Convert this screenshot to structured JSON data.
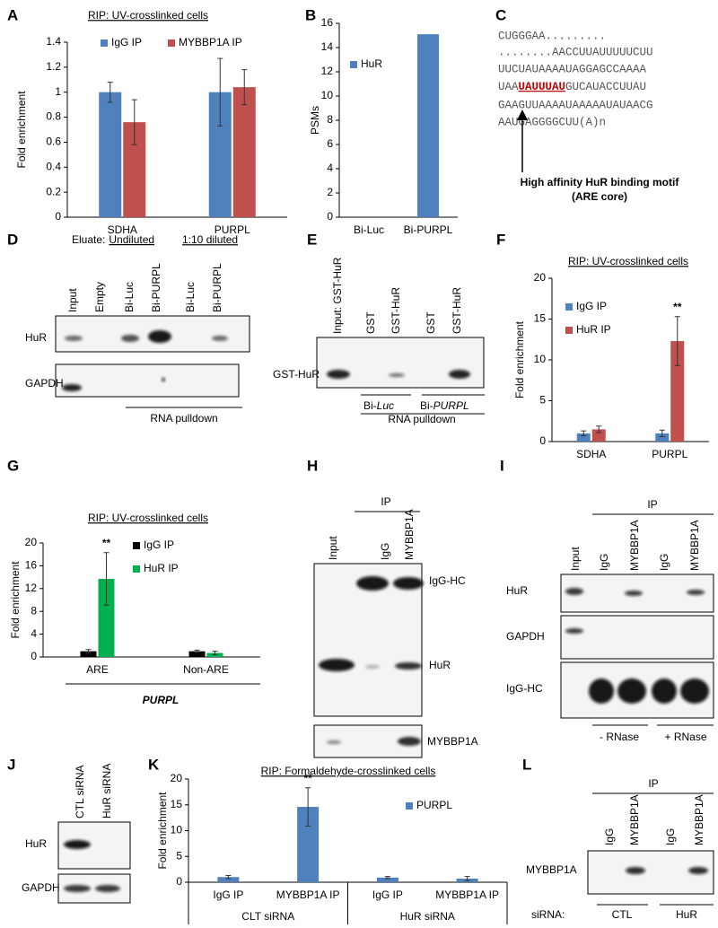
{
  "chart_data": [
    {
      "type": "bar",
      "label": "A",
      "title": "RIP: UV-crosslinked cells",
      "y_label": "Fold enrichment",
      "categories": [
        "SDHA",
        "PURPL"
      ],
      "series": [
        {
          "name": "IgG IP",
          "color": "#4f81bd",
          "values": [
            1,
            1
          ],
          "errors": [
            0.08,
            0.27
          ]
        },
        {
          "name": "MYBBP1A IP",
          "color": "#c0504d",
          "values": [
            0.76,
            1.04
          ],
          "errors": [
            0.18,
            0.14
          ]
        }
      ],
      "ylim": [
        0,
        1.4
      ],
      "yticks": [
        0,
        0.2,
        0.4,
        0.6,
        0.8,
        1,
        1.2,
        1.4
      ]
    },
    {
      "type": "bar",
      "label": "B",
      "y_label": "PSMs",
      "categories": [
        "Bi-Luc",
        "Bi-PURPL"
      ],
      "series": [
        {
          "name": "HuR",
          "color": "#4f81bd",
          "values": [
            0,
            15.1
          ]
        }
      ],
      "ylim": [
        0,
        16
      ],
      "yticks": [
        0,
        2,
        4,
        6,
        8,
        10,
        12,
        14,
        16
      ]
    },
    {
      "type": "bar",
      "label": "F",
      "title": "RIP: UV-crosslinked cells",
      "y_label": "Fold enrichment",
      "categories": [
        "SDHA",
        "PURPL"
      ],
      "series": [
        {
          "name": "IgG IP",
          "color": "#4f81bd",
          "values": [
            1,
            1
          ],
          "errors": [
            0.3,
            0.4
          ]
        },
        {
          "name": "HuR IP",
          "color": "#c0504d",
          "values": [
            1.5,
            12.3
          ],
          "errors": [
            0.4,
            3
          ]
        }
      ],
      "ylim": [
        0,
        20
      ],
      "yticks": [
        0,
        5,
        10,
        15,
        20
      ],
      "annotation": "**"
    },
    {
      "type": "bar",
      "label": "G",
      "title": "RIP: UV-crosslinked cells",
      "y_label": "Fold enrichment",
      "subtitle": "PURPL",
      "categories": [
        "ARE",
        "Non-ARE"
      ],
      "series": [
        {
          "name": "IgG IP",
          "color": "#000000",
          "values": [
            1,
            1
          ],
          "errors": [
            0.3,
            0.2
          ]
        },
        {
          "name": "HuR IP",
          "color": "#00b050",
          "values": [
            13.7,
            0.7
          ],
          "errors": [
            4.6,
            0.3
          ]
        }
      ],
      "ylim": [
        0,
        20
      ],
      "yticks": [
        0,
        4,
        8,
        12,
        16,
        20
      ],
      "annotation": "**"
    },
    {
      "type": "bar",
      "label": "K",
      "title": "RIP: Formaldehyde-crosslinked cells",
      "y_label": "Fold enrichment",
      "categories": [
        "IgG IP",
        "MYBBP1A IP",
        "IgG IP",
        "MYBBP1A IP"
      ],
      "groups": [
        "CLT siRNA",
        "HuR siRNA"
      ],
      "series": [
        {
          "name": "PURPL",
          "color": "#4f81bd",
          "values": [
            1,
            14.6,
            0.9,
            0.7
          ],
          "errors": [
            0.3,
            3.7,
            0.2,
            0.4
          ]
        }
      ],
      "ylim": [
        0,
        20
      ],
      "yticks": [
        0,
        5,
        10,
        15,
        20
      ],
      "annotation": "**"
    }
  ],
  "panels": {
    "C": {
      "label": "C",
      "sequence": [
        "CUGGGAA.........",
        "........AACCUUAUUUUUCUU",
        "UUCUAUAAAAUAGGAGCCAAAA",
        {
          "before": "UAA",
          "motif": "UAUUUAU",
          "after": "GUCAUACCUUAU"
        },
        "GAAGUUAAAAUAAAAAUAUAACG",
        "AAUGAGGGGCUU(A)n"
      ],
      "note": [
        "High affinity HuR binding motif",
        "(ARE core)"
      ]
    },
    "D": {
      "label": "D",
      "eluate": "Eluate:",
      "undiluted": "Undiluted",
      "diluted": "1:10 diluted",
      "lanes": [
        "Input",
        "Empty",
        "Bi-Luc",
        "Bi-PURPL",
        "Bi-Luc",
        "Bi-PURPL"
      ],
      "rows": [
        "HuR",
        "GAPDH"
      ],
      "footer": "RNA pulldown"
    },
    "E": {
      "label": "E",
      "lanes": [
        "Input: GST-HuR",
        "GST",
        "GST-HuR",
        "GST",
        "GST-HuR"
      ],
      "rows": [
        "GST-HuR"
      ],
      "baits": [
        {
          "prefix": "Bi-",
          "name": "Luc"
        },
        {
          "prefix": "Bi-",
          "name": "PURPL"
        }
      ],
      "footer": "RNA pulldown"
    },
    "H": {
      "label": "H",
      "ip": "IP",
      "lanes": [
        "Input",
        "IgG",
        "MYBBP1A"
      ],
      "rows": [
        "IgG-HC",
        "HuR",
        "MYBBP1A"
      ]
    },
    "I": {
      "label": "I",
      "ip": "IP",
      "lanes": [
        "Input",
        "IgG",
        "MYBBP1A",
        "IgG",
        "MYBBP1A"
      ],
      "rows": [
        "HuR",
        "GAPDH",
        "IgG-HC"
      ],
      "conditions": [
        "- RNase",
        "+ RNase"
      ]
    },
    "J": {
      "label": "J",
      "lanes": [
        "CTL siRNA",
        "HuR siRNA"
      ],
      "rows": [
        "HuR",
        "GAPDH"
      ]
    },
    "L": {
      "label": "L",
      "ip": "IP",
      "lanes": [
        "IgG",
        "MYBBP1A",
        "IgG",
        "MYBBP1A"
      ],
      "rows": [
        "MYBBP1A"
      ],
      "sirna": "siRNA:",
      "conditions": [
        "CTL",
        "HuR"
      ]
    }
  }
}
